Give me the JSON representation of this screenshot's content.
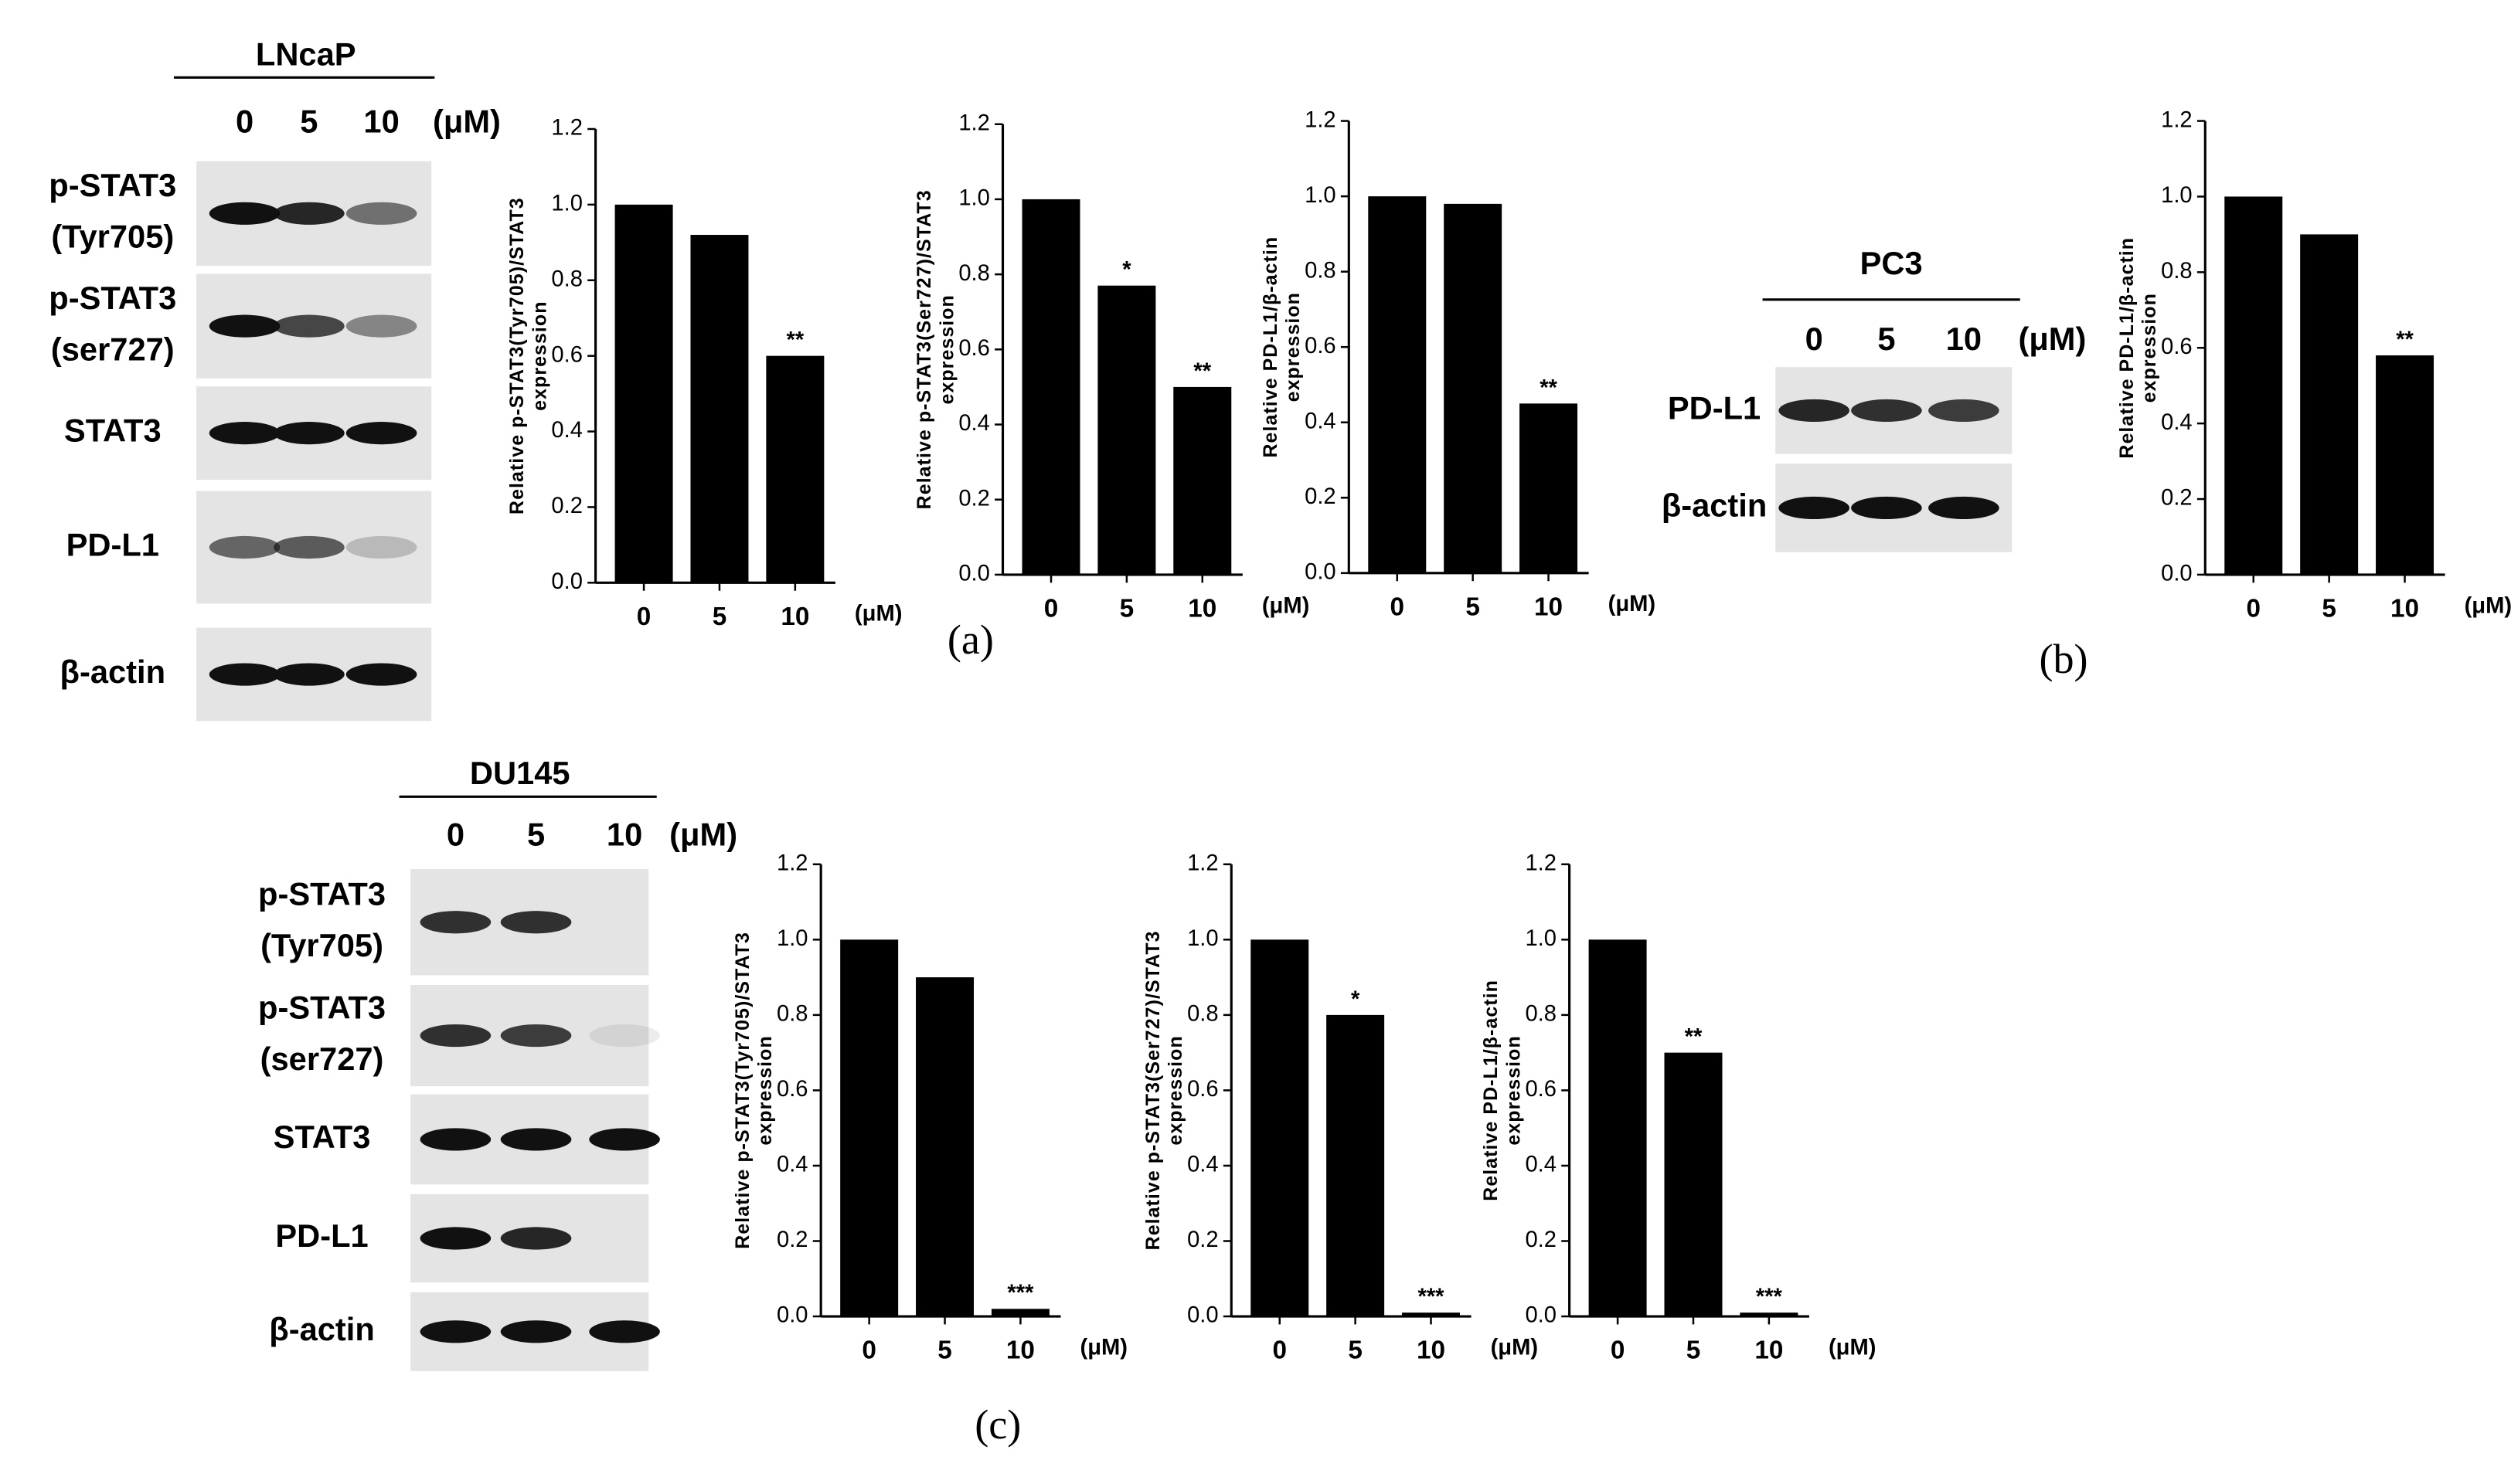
{
  "chart_data": [
    {
      "type": "bar",
      "y_label": [
        "Relative p-STAT3(Tyr705)/STAT3",
        "expression"
      ],
      "categories": [
        "0",
        "5",
        "10"
      ],
      "x_unit": "(μM)",
      "values": [
        1.0,
        0.92,
        0.6
      ],
      "significance": [
        null,
        null,
        "**"
      ],
      "color": "#000000",
      "ylim": [
        0,
        1.2
      ],
      "yticks": [
        {
          "value": 0,
          "label": "0.0"
        },
        0.2,
        0.4,
        0.6,
        0.8,
        {
          "value": 1,
          "label": "1.0"
        },
        1.2
      ]
    },
    {
      "type": "bar",
      "y_label": [
        "Relative p-STAT3(Ser727)/STAT3",
        "expression"
      ],
      "categories": [
        "0",
        "5",
        "10"
      ],
      "x_unit": "(μM)",
      "values": [
        1.0,
        0.77,
        0.5
      ],
      "significance": [
        null,
        "*",
        "**"
      ],
      "color": "#000000",
      "ylim": [
        0,
        1.2
      ],
      "yticks": [
        {
          "value": 0,
          "label": "0.0"
        },
        0.2,
        0.4,
        0.6,
        0.8,
        {
          "value": 1,
          "label": "1.0"
        },
        1.2
      ]
    },
    {
      "type": "bar",
      "y_label": [
        "Relative PD-L1/β-actin",
        "expression"
      ],
      "categories": [
        "0",
        "5",
        "10"
      ],
      "x_unit": "(μM)",
      "values": [
        1.0,
        0.98,
        0.45
      ],
      "significance": [
        null,
        null,
        "**"
      ],
      "color": "#000000",
      "ylim": [
        0,
        1.2
      ],
      "yticks": [
        {
          "value": 0,
          "label": "0.0"
        },
        0.2,
        0.4,
        0.6,
        0.8,
        {
          "value": 1,
          "label": "1.0"
        },
        1.2
      ]
    },
    {
      "type": "bar",
      "y_label": [
        "Relative PD-L1/β-actin",
        "expression"
      ],
      "categories": [
        "0",
        "5",
        "10"
      ],
      "x_unit": "(μM)",
      "values": [
        1.0,
        0.9,
        0.58
      ],
      "significance": [
        null,
        null,
        "**"
      ],
      "color": "#000000",
      "ylim": [
        0,
        1.2
      ],
      "yticks": [
        {
          "value": 0,
          "label": "0.0"
        },
        0.2,
        0.4,
        0.6,
        0.8,
        {
          "value": 1,
          "label": "1.0"
        },
        1.2
      ]
    },
    {
      "type": "bar",
      "y_label": [
        "Relative p-STAT3(Tyr705)/STAT3",
        "expression"
      ],
      "categories": [
        "0",
        "5",
        "10"
      ],
      "x_unit": "(μM)",
      "values": [
        1.0,
        0.9,
        0.02
      ],
      "significance": [
        null,
        null,
        "***"
      ],
      "color": "#000000",
      "ylim": [
        0,
        1.2
      ],
      "yticks": [
        {
          "value": 0,
          "label": "0.0"
        },
        0.2,
        0.4,
        0.6,
        0.8,
        {
          "value": 1,
          "label": "1.0"
        },
        1.2
      ]
    },
    {
      "type": "bar",
      "y_label": [
        "Relative p-STAT3(Ser727)/STAT3",
        "expression"
      ],
      "categories": [
        "0",
        "5",
        "10"
      ],
      "x_unit": "(μM)",
      "values": [
        1.0,
        0.8,
        0.01
      ],
      "significance": [
        null,
        "*",
        "***"
      ],
      "color": "#000000",
      "ylim": [
        0,
        1.2
      ],
      "yticks": [
        {
          "value": 0,
          "label": "0.0"
        },
        0.2,
        0.4,
        0.6,
        0.8,
        {
          "value": 1,
          "label": "1.0"
        },
        1.2
      ]
    },
    {
      "type": "bar",
      "y_label": [
        "Relative PD-L1/β-actin",
        "expression"
      ],
      "categories": [
        "0",
        "5",
        "10"
      ],
      "x_unit": "(μM)",
      "values": [
        1.0,
        0.7,
        0.01
      ],
      "significance": [
        null,
        "**",
        "***"
      ],
      "color": "#000000",
      "ylim": [
        0,
        1.2
      ],
      "yticks": [
        {
          "value": 0,
          "label": "0.0"
        },
        0.2,
        0.4,
        0.6,
        0.8,
        {
          "value": 1,
          "label": "1.0"
        },
        1.2
      ]
    }
  ],
  "blots": [
    {
      "cell_line": "LNcaP",
      "lanes": [
        "0",
        "5",
        "10"
      ],
      "unit": "(μM)",
      "rows": [
        [
          "p-STAT3",
          "(Tyr705)"
        ],
        [
          "p-STAT3",
          "(ser727)"
        ],
        [
          "STAT3"
        ],
        [
          "PD-L1"
        ],
        [
          "β-actin"
        ]
      ]
    },
    {
      "cell_line": "PC3",
      "lanes": [
        "0",
        "5",
        "10"
      ],
      "unit": "(μM)",
      "rows": [
        [
          "PD-L1"
        ],
        [
          "β-actin"
        ]
      ]
    },
    {
      "cell_line": "DU145",
      "lanes": [
        "0",
        "5",
        "10"
      ],
      "unit": "(μM)",
      "rows": [
        [
          "p-STAT3",
          "(Tyr705)"
        ],
        [
          "p-STAT3",
          "(ser727)"
        ],
        [
          "STAT3"
        ],
        [
          "PD-L1"
        ],
        [
          "β-actin"
        ]
      ]
    }
  ],
  "panel_labels": [
    "(a)",
    "(b)",
    "(c)"
  ]
}
